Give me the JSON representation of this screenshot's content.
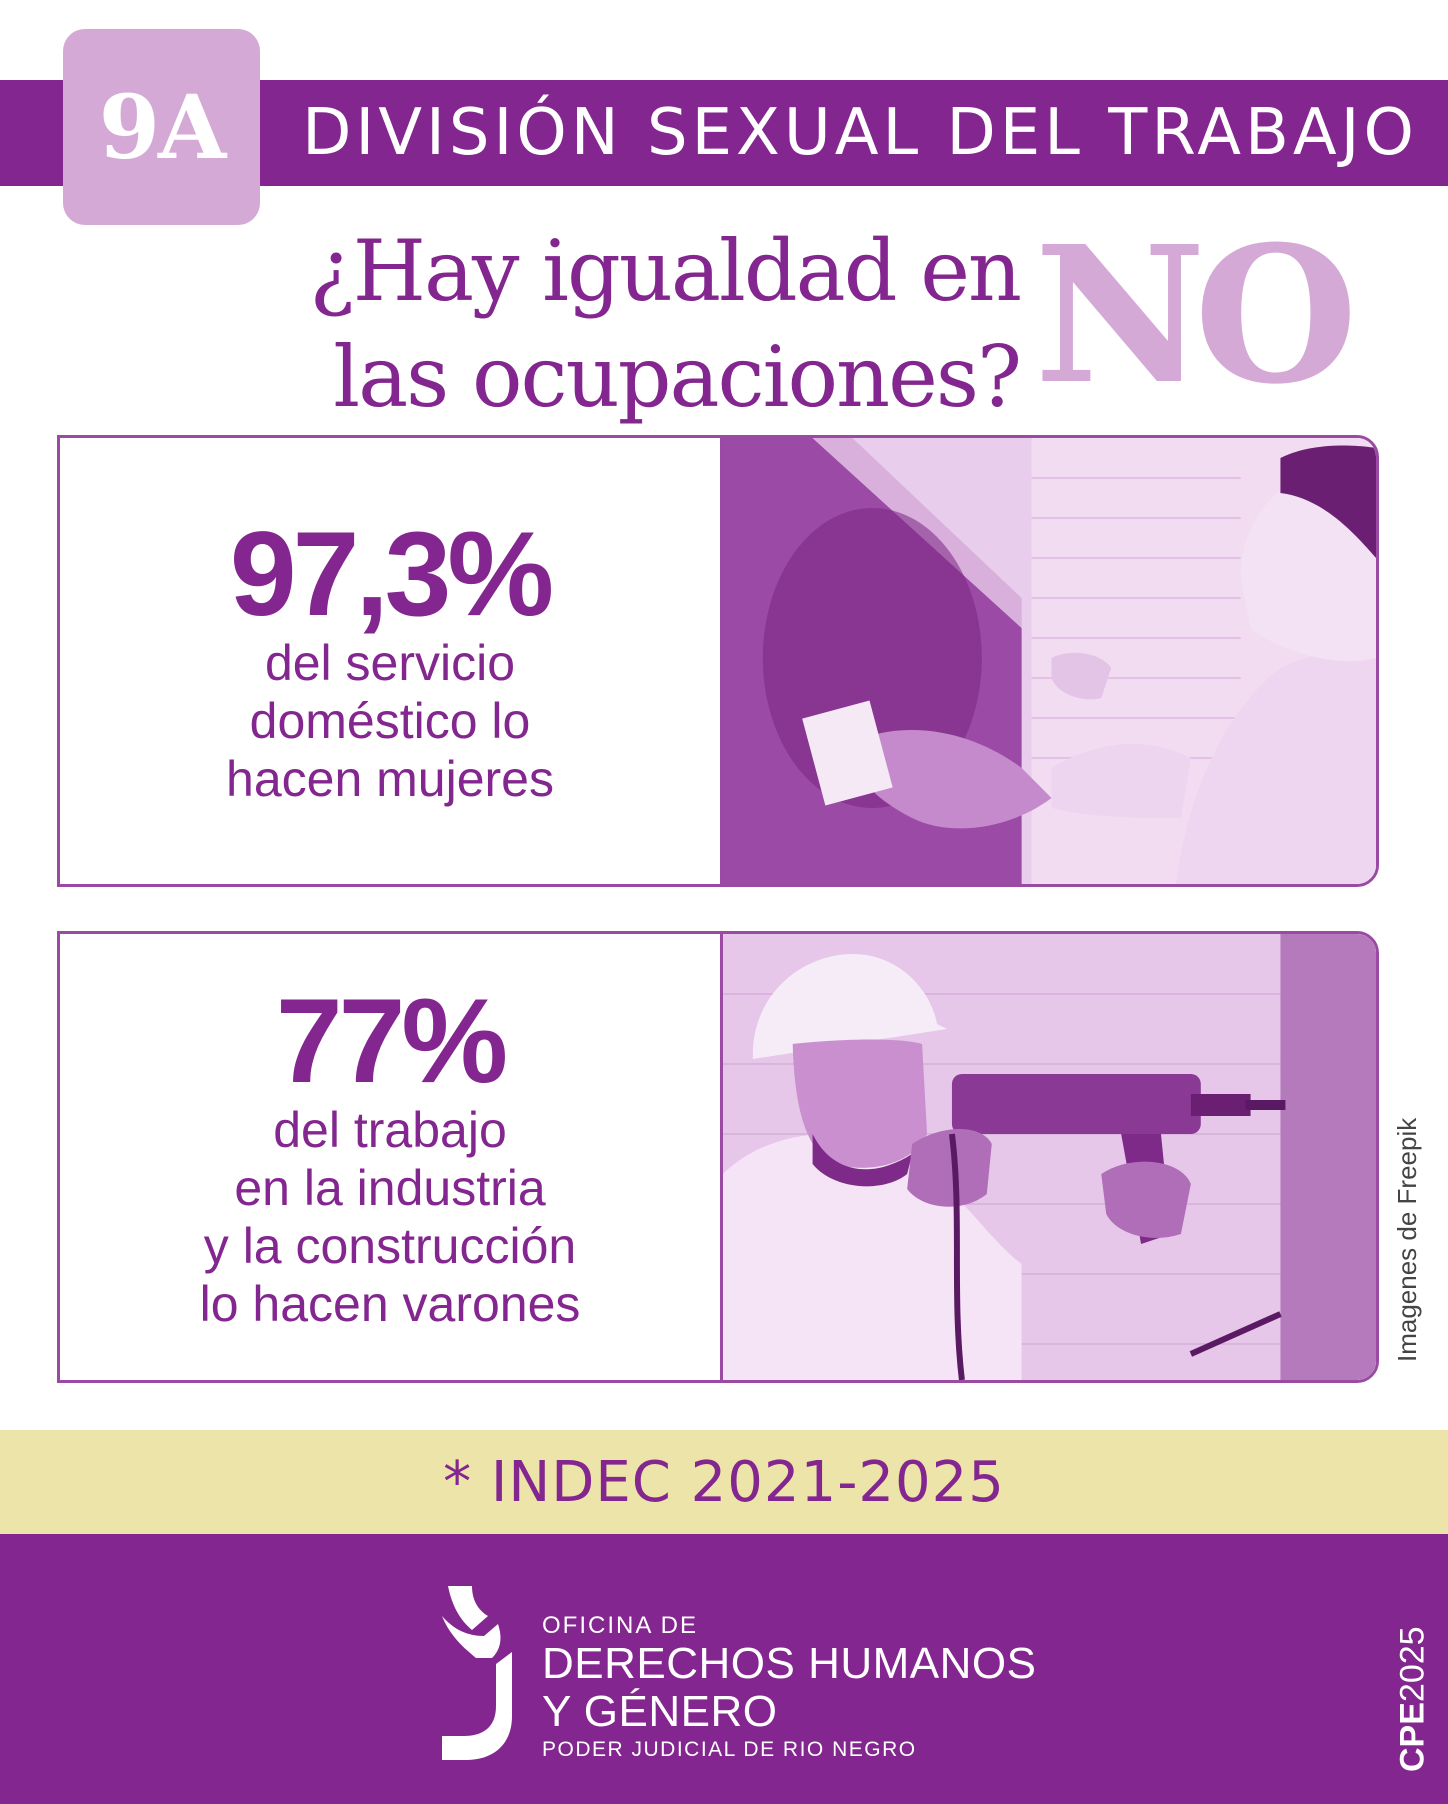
{
  "header": {
    "badge": "9A",
    "title": "DIVISIÓN SEXUAL DEL TRABAJO"
  },
  "question": {
    "line1": "¿Hay igualdad en",
    "line2": "las ocupaciones?",
    "answer": "NO"
  },
  "stats": [
    {
      "value": "97,3%",
      "desc_lines": [
        "del servicio",
        "doméstico lo",
        "hacen mujeres"
      ]
    },
    {
      "value": "77%",
      "desc_lines": [
        "del trabajo",
        "en la industria",
        "y la construcción",
        "lo hacen varones"
      ]
    }
  ],
  "photo_credit": "Imagenes de Freepik",
  "source": "* INDEC 2021-2025",
  "footer": {
    "org_line1": "OFICINA DE",
    "org_line2": "DERECHOS HUMANOS",
    "org_line3": "Y GÉNERO",
    "org_line4": "PODER JUDICIAL DE RIO NEGRO",
    "edition_bold": "CPE",
    "edition_year": "2025"
  },
  "colors": {
    "primary": "#84268f",
    "light": "#d4a9d6",
    "source_band": "#ece4a8"
  },
  "icons": {
    "logo": "justice-j-logo-icon",
    "photo1": "woman-cleaning-photo",
    "photo2": "man-drilling-photo"
  }
}
